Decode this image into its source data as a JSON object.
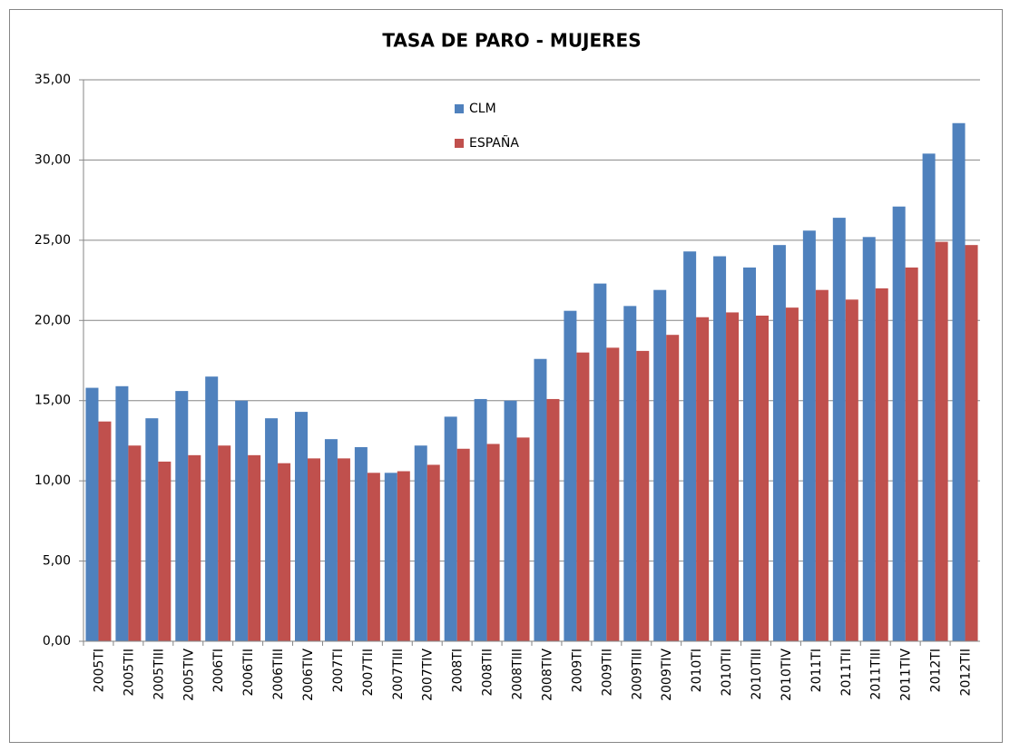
{
  "chart_data": {
    "type": "bar",
    "title": "TASA DE PARO - MUJERES",
    "categories": [
      "2005TI",
      "2005TII",
      "2005TIII",
      "2005TIV",
      "2006TI",
      "2006TII",
      "2006TIII",
      "2006TIV",
      "2007TI",
      "2007TII",
      "2007TIII",
      "2007TIV",
      "2008TI",
      "2008TII",
      "2008TIII",
      "2008TIV",
      "2009TI",
      "2009TII",
      "2009TIII",
      "2009TIV",
      "2010TI",
      "2010TII",
      "2010TIII",
      "2010TIV",
      "2011TI",
      "2011TII",
      "2011TIII",
      "2011TIV",
      "2012TI",
      "2012TII"
    ],
    "series": [
      {
        "name": "CLM",
        "color": "#4f81bd",
        "values": [
          15.8,
          15.9,
          13.9,
          15.6,
          16.5,
          15.0,
          13.9,
          14.3,
          12.6,
          12.1,
          10.5,
          12.2,
          14.0,
          15.1,
          15.0,
          17.6,
          20.6,
          22.3,
          20.9,
          21.9,
          24.3,
          24.0,
          23.3,
          24.7,
          25.6,
          26.4,
          25.2,
          27.1,
          30.4,
          32.3
        ]
      },
      {
        "name": "ESPAÑA",
        "color": "#c0504d",
        "values": [
          13.7,
          12.2,
          11.2,
          11.6,
          12.2,
          11.6,
          11.1,
          11.4,
          11.4,
          10.5,
          10.6,
          11.0,
          12.0,
          12.3,
          12.7,
          15.1,
          18.0,
          18.3,
          18.1,
          19.1,
          20.2,
          20.5,
          20.3,
          20.8,
          21.9,
          21.3,
          22.0,
          23.3,
          24.9,
          24.7
        ]
      }
    ],
    "ylim": [
      0,
      35
    ],
    "yticks": [
      {
        "value": 0,
        "label": "0,00"
      },
      {
        "value": 5,
        "label": "5,00"
      },
      {
        "value": 10,
        "label": "10,00"
      },
      {
        "value": 15,
        "label": "15,00"
      },
      {
        "value": 20,
        "label": "20,00"
      },
      {
        "value": 25,
        "label": "25,00"
      },
      {
        "value": 30,
        "label": "30,00"
      },
      {
        "value": 35,
        "label": "35,00"
      }
    ],
    "grid": true,
    "legend": "top"
  }
}
